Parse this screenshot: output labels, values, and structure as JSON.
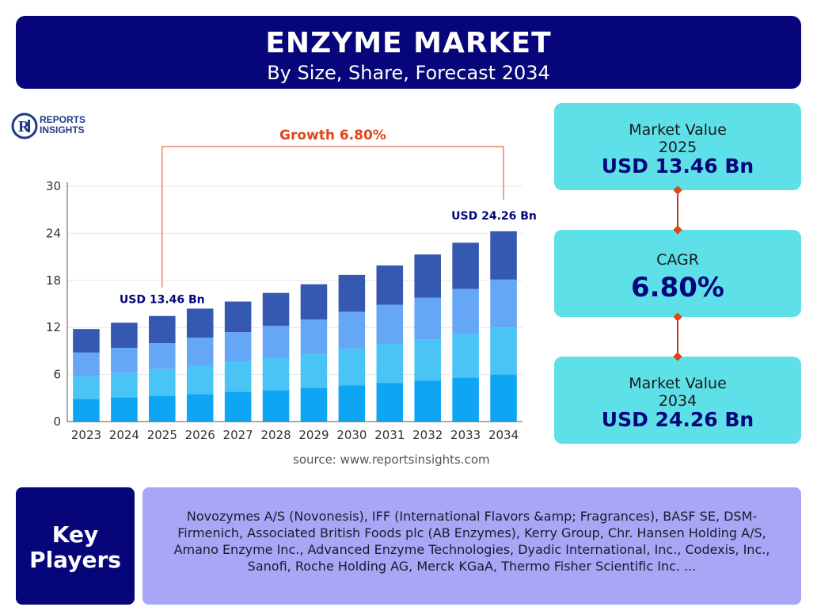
{
  "header": {
    "title": "ENZYME MARKET",
    "subtitle": "By Size, Share, Forecast 2034"
  },
  "logo": {
    "line1": "REPORTS",
    "line2": "INSIGHTS"
  },
  "growth_label": "Growth 6.80%",
  "start_label": "USD 13.46 Bn",
  "end_label": "USD 24.26 Bn",
  "source": "source: www.reportsinsights.com",
  "kpis": {
    "market_value_2025": {
      "label": "Market Value",
      "year": "2025",
      "value": "USD 13.46 Bn"
    },
    "cagr": {
      "label": "CAGR",
      "value": "6.80%"
    },
    "market_value_2034": {
      "label": "Market Value",
      "year": "2034",
      "value": "USD 24.26 Bn"
    }
  },
  "key_players": {
    "title_line1": "Key",
    "title_line2": "Players",
    "text": "Novozymes A/S (Novonesis), IFF (International Flavors &amp; Fragrances), BASF SE, DSM-Firmenich, Associated British Foods plc (AB Enzymes), Kerry Group, Chr. Hansen Holding A/S, Amano Enzyme Inc., Advanced Enzyme Technologies, Dyadic International, Inc., Codexis, Inc., Sanofi, Roche Holding AG, Merck KGaA, Thermo Fisher Scientific Inc. ..."
  },
  "colors": {
    "navy": "#06067a",
    "cyan": "#5ee0e8",
    "lavender": "#a9a6f5",
    "growth": "#e0451b",
    "segments": [
      "#0ea5f5",
      "#4ac4f5",
      "#65a6f7",
      "#3558b0"
    ]
  },
  "chart_data": {
    "type": "bar",
    "stacked": true,
    "categories": [
      "2023",
      "2024",
      "2025",
      "2026",
      "2027",
      "2028",
      "2029",
      "2030",
      "2031",
      "2032",
      "2033",
      "2034"
    ],
    "totals": [
      11.8,
      12.6,
      13.46,
      14.4,
      15.3,
      16.4,
      17.5,
      18.7,
      19.9,
      21.3,
      22.8,
      24.26
    ],
    "series": [
      {
        "values": [
          2.9,
          3.1,
          3.3,
          3.5,
          3.8,
          4.0,
          4.3,
          4.6,
          4.9,
          5.2,
          5.6,
          6.0
        ]
      },
      {
        "values": [
          2.9,
          3.1,
          3.4,
          3.6,
          3.8,
          4.1,
          4.3,
          4.7,
          5.0,
          5.3,
          5.6,
          6.0
        ]
      },
      {
        "values": [
          3.0,
          3.2,
          3.3,
          3.6,
          3.8,
          4.1,
          4.4,
          4.7,
          5.0,
          5.3,
          5.7,
          6.1
        ]
      },
      {
        "values": [
          3.0,
          3.2,
          3.46,
          3.7,
          3.9,
          4.2,
          4.5,
          4.7,
          5.0,
          5.5,
          5.9,
          6.16
        ]
      }
    ],
    "yticks": [
      0,
      6,
      12,
      18,
      24,
      30
    ],
    "ylim": [
      0,
      30
    ],
    "grid": true
  }
}
